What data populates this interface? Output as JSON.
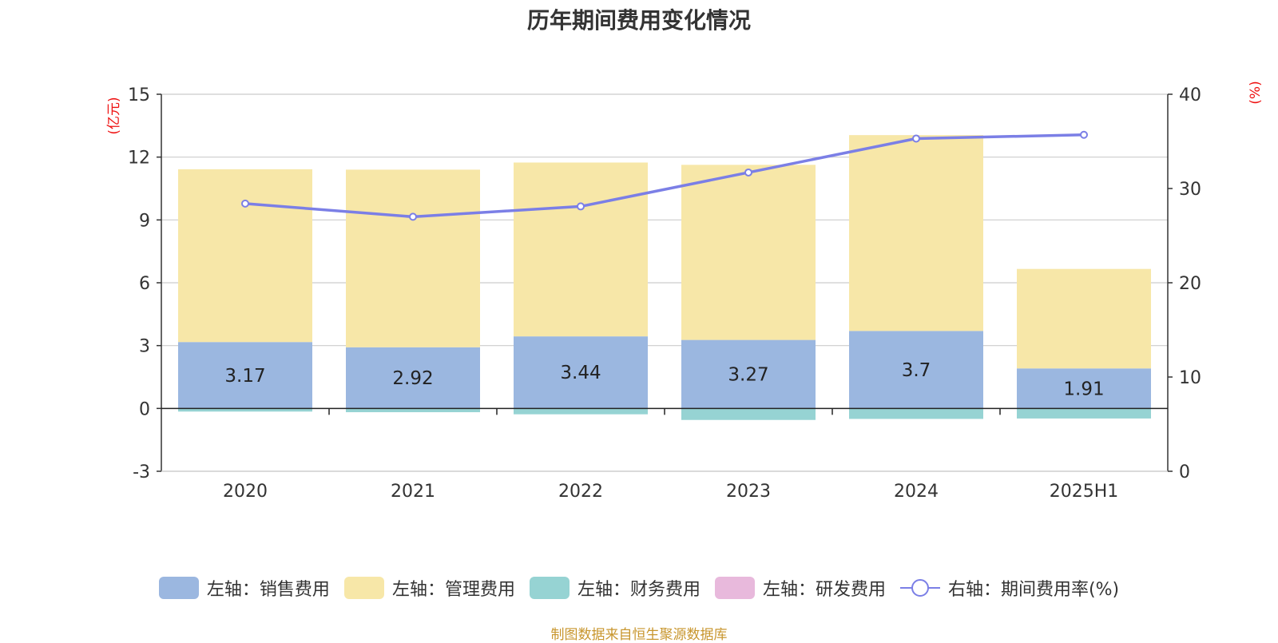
{
  "chart_data": {
    "type": "bar",
    "title": "历年期间费用变化情况",
    "categories": [
      "2020",
      "2021",
      "2022",
      "2023",
      "2024",
      "2025H1"
    ],
    "left_axis": {
      "unit_label": "(亿元)",
      "ylim": [
        -3,
        15
      ],
      "ticks": [
        -3,
        0,
        3,
        6,
        9,
        12,
        15
      ]
    },
    "right_axis": {
      "unit_label": "(%)",
      "ylim": [
        0,
        40
      ],
      "ticks": [
        0,
        10,
        20,
        30,
        40
      ]
    },
    "grid": true,
    "legend_position": "bottom",
    "series": [
      {
        "name": "左轴：销售费用",
        "type": "bar",
        "stack": "total",
        "color": "#9bb7e0",
        "values": [
          3.17,
          2.92,
          3.44,
          3.27,
          3.7,
          1.91
        ],
        "data_labels": [
          "3.17",
          "2.92",
          "3.44",
          "3.27",
          "3.7",
          "1.91"
        ]
      },
      {
        "name": "左轴：管理费用",
        "type": "bar",
        "stack": "total",
        "color": "#f7e7a8",
        "values": [
          8.25,
          8.48,
          8.3,
          8.36,
          9.35,
          4.75
        ]
      },
      {
        "name": "左轴：财务费用",
        "type": "bar",
        "stack": "total",
        "color": "#96d3d3",
        "values": [
          -0.15,
          -0.18,
          -0.28,
          -0.55,
          -0.5,
          -0.48
        ]
      },
      {
        "name": "左轴：研发费用",
        "type": "bar",
        "stack": "total",
        "color": "#e8b9dc",
        "values": [
          0,
          0,
          0,
          0,
          0,
          0
        ]
      },
      {
        "name": "右轴：期间费用率(%)",
        "type": "line",
        "axis": "right",
        "color": "#7b7fe6",
        "values": [
          28.4,
          27.0,
          28.1,
          31.7,
          35.3,
          35.7
        ]
      }
    ]
  },
  "source_note": "制图数据来自恒生聚源数据库"
}
